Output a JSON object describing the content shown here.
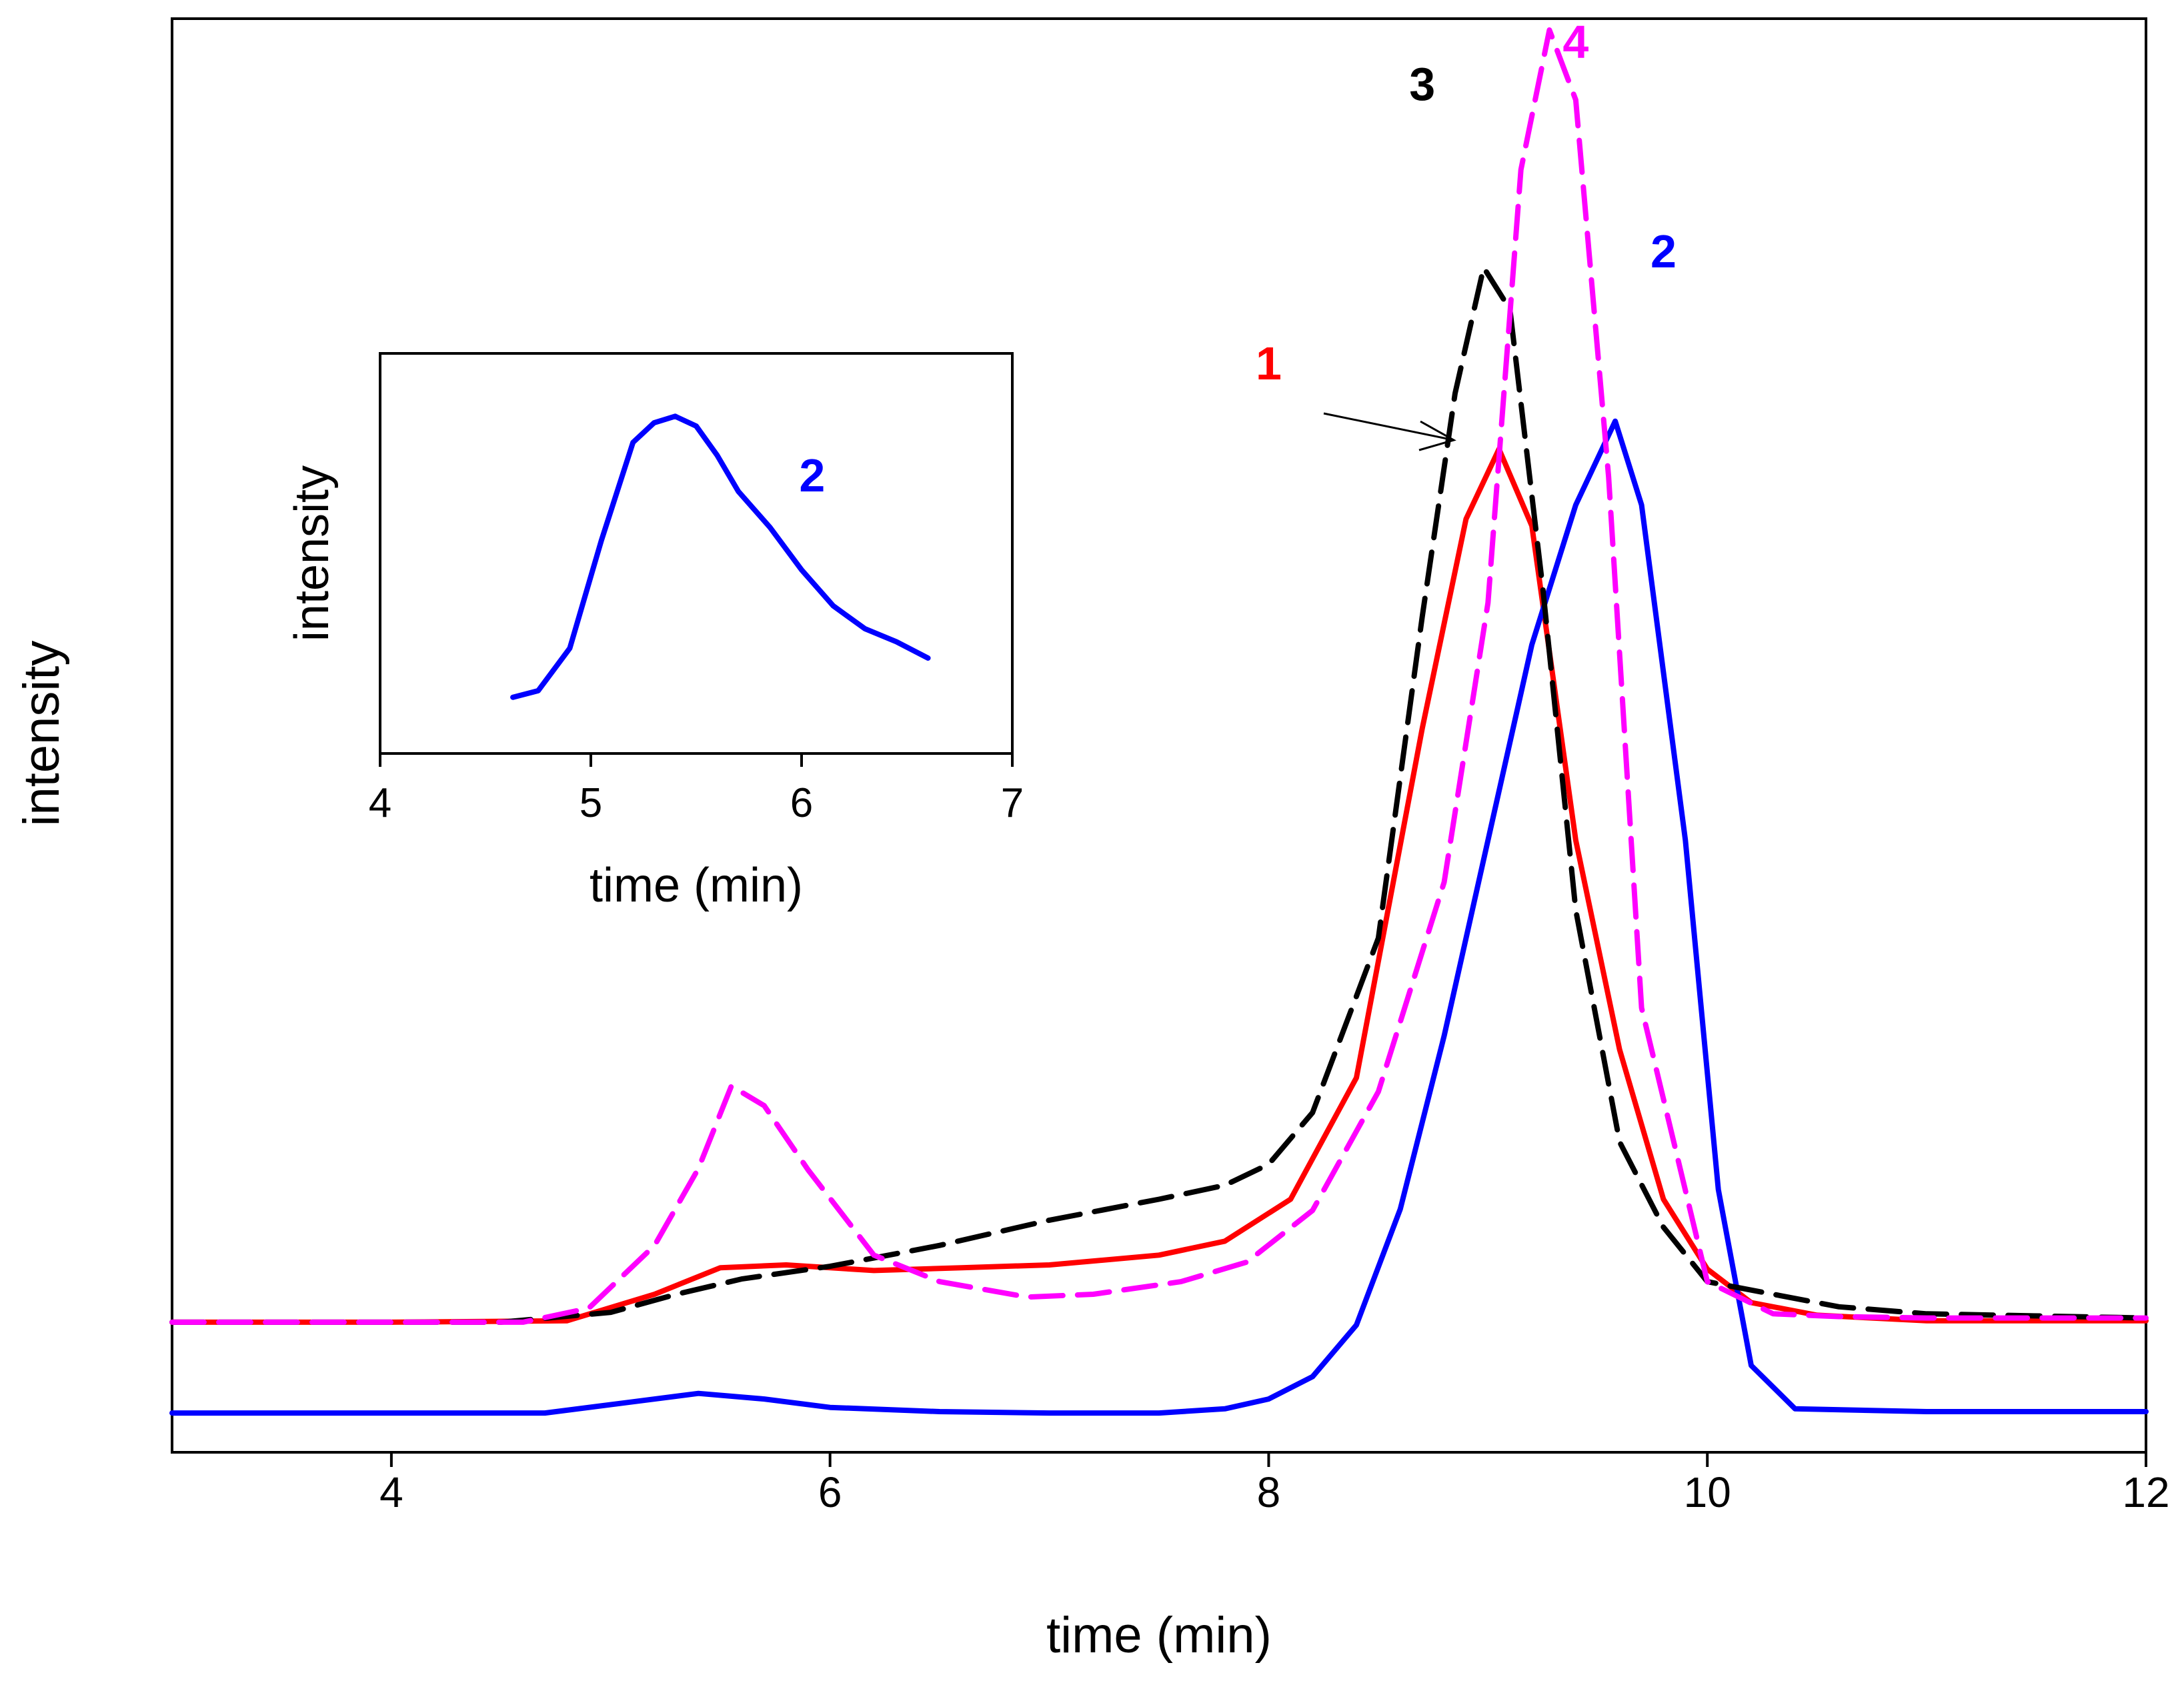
{
  "chart_data": [
    {
      "id": "main",
      "type": "line",
      "title": "",
      "xlabel": "time (min)",
      "ylabel": "intensity",
      "xlim": [
        3,
        12
      ],
      "ylim": [
        0,
        100
      ],
      "xticks": [
        4,
        6,
        8,
        10,
        12
      ],
      "yticks": [],
      "grid": false,
      "series": [
        {
          "name": "1",
          "color": "#ff0000",
          "dash": "solid",
          "x": [
            3,
            4,
            4.8,
            5.2,
            5.5,
            5.8,
            6.2,
            6.6,
            7.0,
            7.5,
            7.8,
            8.1,
            8.4,
            8.7,
            8.9,
            9.05,
            9.2,
            9.4,
            9.6,
            9.8,
            10.0,
            10.2,
            10.5,
            11,
            12
          ],
          "y": [
            7.5,
            7.5,
            7.6,
            9.5,
            11.4,
            11.6,
            11.2,
            11.4,
            11.6,
            12.3,
            13.3,
            16.3,
            25,
            50,
            65,
            70,
            64.5,
            42,
            27,
            16.3,
            11.3,
            8.9,
            8,
            7.6,
            7.6
          ]
        },
        {
          "name": "2",
          "color": "#0000ff",
          "dash": "solid",
          "x": [
            3,
            4.7,
            5.1,
            5.4,
            5.7,
            6,
            6.5,
            7,
            7.5,
            7.8,
            8.0,
            8.2,
            8.4,
            8.6,
            8.8,
            9.0,
            9.2,
            9.4,
            9.58,
            9.7,
            9.9,
            10.05,
            10.2,
            10.4,
            11,
            12
          ],
          "y": [
            1,
            1,
            1.8,
            2.4,
            2.0,
            1.4,
            1.1,
            1,
            1,
            1.3,
            2,
            3.6,
            7.3,
            15.6,
            28,
            42,
            56,
            66,
            72,
            66,
            42,
            17,
            4.4,
            1.3,
            1.1,
            1.1
          ]
        },
        {
          "name": "3",
          "color": "#000000",
          "dash": "dashed",
          "x": [
            3,
            4.5,
            5.0,
            5.3,
            5.6,
            6,
            6.5,
            7,
            7.5,
            7.8,
            8.0,
            8.2,
            8.5,
            8.7,
            8.85,
            8.98,
            9.1,
            9.25,
            9.4,
            9.6,
            9.8,
            10.0,
            10.3,
            10.6,
            11,
            12
          ],
          "y": [
            7.5,
            7.5,
            8.2,
            9.5,
            10.6,
            11.5,
            13,
            14.8,
            16.3,
            17.3,
            18.8,
            22.5,
            35,
            58,
            74,
            83,
            80,
            60,
            37,
            20.4,
            14.3,
            10.4,
            9.5,
            8.6,
            8.1,
            7.8
          ]
        },
        {
          "name": "4",
          "color": "#ff00ff",
          "dash": "dashed",
          "x": [
            3,
            4.6,
            4.9,
            5.2,
            5.4,
            5.55,
            5.7,
            5.9,
            6.2,
            6.5,
            6.9,
            7.2,
            7.6,
            7.9,
            8.2,
            8.5,
            8.8,
            9.0,
            9.15,
            9.28,
            9.4,
            9.55,
            9.7,
            10.0,
            10.3,
            10.6,
            11,
            12
          ],
          "y": [
            7.5,
            7.5,
            8.5,
            13,
            18.5,
            24.4,
            23,
            18.4,
            12.3,
            10.4,
            9.3,
            9.5,
            10.4,
            11.8,
            15.5,
            24,
            39,
            59,
            90,
            100,
            95,
            68,
            30,
            10.4,
            8.1,
            7.9,
            7.8,
            7.8
          ]
        }
      ],
      "annotations": [
        {
          "text": "1",
          "color": "#ff0000",
          "x": 8.0,
          "y": 75
        },
        {
          "text": "2",
          "color": "#0000ff",
          "x": 9.8,
          "y": 83
        },
        {
          "text": "3",
          "color": "#000000",
          "x": 8.7,
          "y": 95
        },
        {
          "text": "4",
          "color": "#ff00ff",
          "x": 9.4,
          "y": 98
        }
      ]
    },
    {
      "id": "inset",
      "type": "line",
      "title": "",
      "xlabel": "time (min)",
      "ylabel": "intensity",
      "xlim": [
        4,
        7
      ],
      "ylim": [
        0,
        100
      ],
      "xticks": [
        4,
        5,
        6,
        7
      ],
      "yticks": [],
      "grid": false,
      "series": [
        {
          "name": "2",
          "color": "#0000ff",
          "dash": "solid",
          "x": [
            4.63,
            4.75,
            4.9,
            5.05,
            5.2,
            5.3,
            5.4,
            5.5,
            5.6,
            5.7,
            5.85,
            6.0,
            6.15,
            6.3,
            6.45,
            6.6
          ],
          "y": [
            7,
            9,
            22,
            55,
            85,
            91,
            93,
            90,
            81,
            70,
            59,
            46,
            35,
            28,
            24,
            19
          ]
        }
      ],
      "annotations": [
        {
          "text": "2",
          "color": "#0000ff",
          "x": 6.05,
          "y": 70
        }
      ]
    }
  ]
}
